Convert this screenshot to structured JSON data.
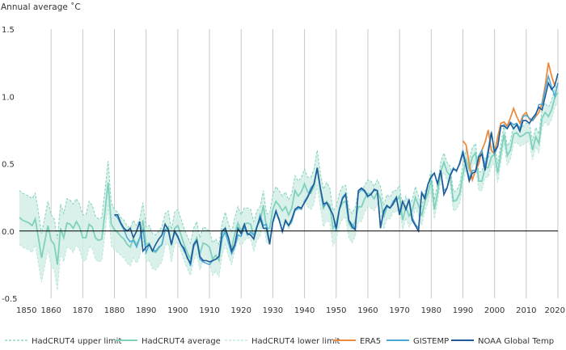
{
  "chart_data": {
    "type": "line",
    "ylabel": "Annual average ˚C",
    "xlim": [
      1850,
      2020
    ],
    "ylim": [
      -0.5,
      1.5
    ],
    "x_ticks": [
      1850,
      1860,
      1870,
      1880,
      1890,
      1900,
      1910,
      1920,
      1930,
      1940,
      1950,
      1960,
      1970,
      1980,
      1990,
      2000,
      2010,
      2020
    ],
    "y_ticks": [
      -0.5,
      0.0,
      0.5,
      1.0,
      1.5
    ],
    "y_tick_labels": [
      "-0.5",
      "0.0",
      "0.5",
      "1.0",
      "1.5"
    ],
    "grid": "vertical",
    "legend_position": "bottom",
    "colors": {
      "hadcrut_band": "#d4efe7",
      "hadcrut_limits": "#7fd1bd",
      "hadcrut_average": "#7fd1bd",
      "era5": "#ec8a3f",
      "gistemp": "#49a8d4",
      "noaa": "#1f5a96",
      "grid": "#c8c8c8",
      "zero_line": "#000000"
    },
    "legend": [
      {
        "key": "upper",
        "label": "HadCRUT4 upper limit",
        "style": "dashed",
        "color": "#7fd1bd"
      },
      {
        "key": "average",
        "label": "HadCRUT4 average",
        "style": "solid",
        "color": "#7fd1bd"
      },
      {
        "key": "lower",
        "label": "HadCRUT4 lower limit",
        "style": "dashed",
        "color": "#b8e5d9"
      },
      {
        "key": "era5",
        "label": "ERA5",
        "style": "solid",
        "color": "#ec8a3f"
      },
      {
        "key": "gistemp",
        "label": "GISTEMP",
        "style": "solid",
        "color": "#49a8d4"
      },
      {
        "key": "noaa",
        "label": "NOAA Global Temp",
        "style": "solid",
        "color": "#1f5a96"
      }
    ],
    "hadcrut": {
      "start_year": 1850,
      "average": [
        0.1,
        0.08,
        0.07,
        0.06,
        0.04,
        0.09,
        -0.05,
        -0.2,
        -0.08,
        0.04,
        -0.07,
        -0.1,
        -0.25,
        0.02,
        -0.05,
        0.06,
        0.05,
        0.02,
        0.07,
        0.03,
        -0.05,
        -0.05,
        0.05,
        0.03,
        -0.05,
        -0.07,
        -0.06,
        0.14,
        0.36,
        0.05,
        0.01,
        -0.01,
        -0.04,
        -0.06,
        -0.1,
        -0.12,
        -0.06,
        -0.1,
        -0.05,
        0.08,
        -0.1,
        -0.09,
        -0.15,
        -0.16,
        -0.13,
        -0.1,
        0.01,
        0.03,
        -0.11,
        0.02,
        0.04,
        -0.03,
        -0.1,
        -0.16,
        -0.21,
        -0.1,
        -0.05,
        -0.17,
        -0.09,
        -0.1,
        -0.12,
        -0.21,
        -0.18,
        -0.22,
        -0.06,
        0.02,
        -0.07,
        -0.13,
        -0.02,
        0.06,
        0.0,
        0.05,
        0.06,
        0.05,
        -0.04,
        0.04,
        0.07,
        0.19,
        0.02,
        0.02,
        0.16,
        0.22,
        0.19,
        0.15,
        0.18,
        0.12,
        0.17,
        0.3,
        0.26,
        0.29,
        0.35,
        0.29,
        0.28,
        0.33,
        0.47,
        0.3,
        0.17,
        0.22,
        0.19,
        0.02,
        0.06,
        0.16,
        0.21,
        0.22,
        0.06,
        0.02,
        0.07,
        0.18,
        0.18,
        0.24,
        0.28,
        0.27,
        0.24,
        0.29,
        0.24,
        0.1,
        0.18,
        0.17,
        0.22,
        0.22,
        0.26,
        0.08,
        0.18,
        0.11,
        0.15,
        0.25,
        0.19,
        0.11,
        0.22,
        0.28,
        0.38,
        0.16,
        0.28,
        0.44,
        0.51,
        0.44,
        0.41,
        0.22,
        0.23,
        0.28,
        0.42,
        0.53,
        0.46,
        0.55,
        0.58,
        0.37,
        0.37,
        0.47,
        0.47,
        0.55,
        0.57,
        0.43,
        0.58,
        0.72,
        0.56,
        0.6,
        0.72,
        0.73,
        0.7,
        0.71,
        0.73,
        0.73,
        0.6,
        0.7,
        0.65,
        0.84,
        0.88,
        0.85,
        0.9,
        0.99,
        1.03
      ],
      "upper": [
        0.3,
        0.28,
        0.27,
        0.26,
        0.24,
        0.28,
        0.14,
        -0.02,
        0.1,
        0.22,
        0.12,
        0.09,
        -0.06,
        0.2,
        0.13,
        0.24,
        0.23,
        0.2,
        0.24,
        0.2,
        0.12,
        0.12,
        0.22,
        0.19,
        0.11,
        0.09,
        0.1,
        0.3,
        0.52,
        0.21,
        0.16,
        0.14,
        0.1,
        0.08,
        0.04,
        0.02,
        0.08,
        0.04,
        0.09,
        0.21,
        0.03,
        0.04,
        -0.02,
        -0.03,
        0.0,
        0.03,
        0.13,
        0.15,
        0.01,
        0.14,
        0.16,
        0.09,
        0.02,
        -0.04,
        -0.09,
        0.02,
        0.07,
        -0.05,
        0.03,
        0.02,
        0.0,
        -0.09,
        -0.06,
        -0.1,
        0.06,
        0.14,
        0.05,
        -0.01,
        0.1,
        0.18,
        0.12,
        0.17,
        0.17,
        0.16,
        0.07,
        0.15,
        0.18,
        0.3,
        0.13,
        0.13,
        0.27,
        0.33,
        0.3,
        0.26,
        0.29,
        0.23,
        0.28,
        0.41,
        0.37,
        0.4,
        0.46,
        0.4,
        0.4,
        0.46,
        0.6,
        0.43,
        0.31,
        0.36,
        0.32,
        0.15,
        0.18,
        0.28,
        0.33,
        0.34,
        0.17,
        0.13,
        0.18,
        0.29,
        0.29,
        0.34,
        0.38,
        0.37,
        0.33,
        0.38,
        0.33,
        0.19,
        0.27,
        0.25,
        0.3,
        0.3,
        0.34,
        0.16,
        0.26,
        0.19,
        0.23,
        0.33,
        0.26,
        0.18,
        0.29,
        0.35,
        0.45,
        0.23,
        0.35,
        0.51,
        0.58,
        0.51,
        0.48,
        0.29,
        0.3,
        0.35,
        0.49,
        0.6,
        0.53,
        0.62,
        0.65,
        0.44,
        0.44,
        0.54,
        0.54,
        0.62,
        0.64,
        0.5,
        0.65,
        0.79,
        0.63,
        0.67,
        0.79,
        0.8,
        0.77,
        0.78,
        0.8,
        0.8,
        0.67,
        0.77,
        0.72,
        0.91,
        0.95,
        0.92,
        0.97,
        1.06,
        1.1
      ],
      "lower": [
        -0.1,
        -0.12,
        -0.13,
        -0.14,
        -0.16,
        -0.1,
        -0.24,
        -0.38,
        -0.26,
        -0.14,
        -0.26,
        -0.29,
        -0.44,
        -0.16,
        -0.23,
        -0.12,
        -0.13,
        -0.16,
        -0.1,
        -0.14,
        -0.22,
        -0.22,
        -0.12,
        -0.13,
        -0.21,
        -0.23,
        -0.22,
        -0.02,
        0.2,
        -0.11,
        -0.14,
        -0.16,
        -0.18,
        -0.2,
        -0.24,
        -0.26,
        -0.2,
        -0.24,
        -0.19,
        -0.05,
        -0.23,
        -0.22,
        -0.28,
        -0.29,
        -0.26,
        -0.23,
        -0.11,
        -0.09,
        -0.23,
        -0.1,
        -0.08,
        -0.15,
        -0.22,
        -0.28,
        -0.33,
        -0.22,
        -0.17,
        -0.29,
        -0.21,
        -0.22,
        -0.24,
        -0.33,
        -0.3,
        -0.34,
        -0.18,
        -0.1,
        -0.19,
        -0.25,
        -0.14,
        -0.06,
        -0.12,
        -0.07,
        -0.05,
        -0.06,
        -0.15,
        -0.07,
        -0.04,
        0.08,
        -0.09,
        -0.09,
        0.05,
        0.11,
        0.08,
        0.04,
        0.07,
        0.01,
        0.06,
        0.19,
        0.15,
        0.18,
        0.24,
        0.18,
        0.16,
        0.2,
        0.34,
        0.17,
        0.03,
        0.08,
        0.06,
        -0.11,
        -0.06,
        0.04,
        0.09,
        0.1,
        -0.05,
        -0.09,
        -0.04,
        0.07,
        0.07,
        0.14,
        0.18,
        0.17,
        0.15,
        0.2,
        0.15,
        0.01,
        0.09,
        0.09,
        0.14,
        0.14,
        0.18,
        0.0,
        0.1,
        0.03,
        0.07,
        0.17,
        0.12,
        0.04,
        0.15,
        0.21,
        0.31,
        0.09,
        0.21,
        0.37,
        0.44,
        0.37,
        0.34,
        0.15,
        0.16,
        0.21,
        0.35,
        0.46,
        0.39,
        0.48,
        0.51,
        0.3,
        0.3,
        0.4,
        0.4,
        0.48,
        0.5,
        0.36,
        0.51,
        0.65,
        0.49,
        0.53,
        0.65,
        0.66,
        0.63,
        0.64,
        0.66,
        0.66,
        0.53,
        0.63,
        0.58,
        0.77,
        0.81,
        0.78,
        0.83,
        0.92,
        0.96
      ]
    },
    "noaa": {
      "start_year": 1880,
      "values": [
        0.12,
        0.12,
        0.06,
        0.02,
        0.0,
        0.02,
        -0.05,
        0.0,
        0.07,
        -0.15,
        -0.12,
        -0.1,
        -0.15,
        -0.1,
        -0.06,
        -0.03,
        0.05,
        0.01,
        -0.1,
        0.0,
        -0.04,
        -0.1,
        -0.13,
        -0.2,
        -0.24,
        -0.1,
        -0.07,
        -0.19,
        -0.22,
        -0.22,
        -0.23,
        -0.22,
        -0.21,
        -0.19,
        0.0,
        0.02,
        -0.05,
        -0.15,
        -0.1,
        0.02,
        -0.02,
        0.05,
        -0.02,
        -0.03,
        -0.06,
        0.03,
        0.1,
        0.02,
        0.02,
        -0.1,
        0.07,
        0.15,
        0.08,
        0.0,
        0.08,
        0.04,
        0.09,
        0.16,
        0.18,
        0.17,
        0.21,
        0.25,
        0.3,
        0.35,
        0.47,
        0.32,
        0.2,
        0.21,
        0.17,
        0.12,
        0.02,
        0.16,
        0.24,
        0.27,
        0.08,
        0.03,
        0.01,
        0.3,
        0.32,
        0.3,
        0.26,
        0.27,
        0.31,
        0.3,
        0.02,
        0.15,
        0.19,
        0.17,
        0.2,
        0.25,
        0.12,
        0.22,
        0.16,
        0.23,
        0.08,
        0.04,
        0.0,
        0.28,
        0.24,
        0.35,
        0.4,
        0.43,
        0.35,
        0.45,
        0.27,
        0.32,
        0.41,
        0.46,
        0.45,
        0.5,
        0.58,
        0.48,
        0.37,
        0.43,
        0.44,
        0.55,
        0.57,
        0.45,
        0.58,
        0.73,
        0.59,
        0.63,
        0.78,
        0.78,
        0.76,
        0.8,
        0.76,
        0.79,
        0.74,
        0.82,
        0.82,
        0.8,
        0.84,
        0.87,
        0.92,
        0.9,
        1.0,
        1.1,
        1.05,
        1.08,
        1.17
      ]
    },
    "gistemp": {
      "start_year": 1880,
      "values": [
        0.12,
        0.1,
        0.05,
        0.01,
        -0.05,
        -0.08,
        -0.07,
        -0.12,
        -0.05,
        0.01,
        -0.16,
        -0.1,
        -0.14,
        -0.15,
        -0.12,
        -0.1,
        0.01,
        0.0,
        -0.1,
        -0.01,
        -0.05,
        -0.1,
        -0.15,
        -0.19,
        -0.26,
        -0.12,
        -0.07,
        -0.21,
        -0.23,
        -0.24,
        -0.25,
        -0.22,
        -0.21,
        -0.19,
        -0.05,
        -0.01,
        -0.09,
        -0.17,
        -0.12,
        -0.03,
        -0.04,
        0.03,
        -0.03,
        -0.01,
        -0.03,
        0.03,
        0.12,
        0.04,
        0.05,
        -0.09,
        0.06,
        0.14,
        0.09,
        -0.01,
        0.07,
        0.04,
        0.07,
        0.15,
        0.17,
        0.16,
        0.22,
        0.26,
        0.32,
        0.35,
        0.46,
        0.32,
        0.18,
        0.21,
        0.16,
        0.12,
        0.0,
        0.16,
        0.25,
        0.28,
        0.08,
        0.05,
        0.02,
        0.28,
        0.31,
        0.29,
        0.25,
        0.28,
        0.3,
        0.3,
        0.04,
        0.13,
        0.18,
        0.17,
        0.22,
        0.25,
        0.14,
        0.22,
        0.16,
        0.24,
        0.1,
        0.05,
        0.02,
        0.29,
        0.25,
        0.35,
        0.41,
        0.43,
        0.35,
        0.45,
        0.3,
        0.32,
        0.42,
        0.47,
        0.44,
        0.51,
        0.6,
        0.49,
        0.39,
        0.45,
        0.45,
        0.56,
        0.6,
        0.48,
        0.61,
        0.74,
        0.57,
        0.63,
        0.78,
        0.79,
        0.76,
        0.81,
        0.79,
        0.8,
        0.76,
        0.85,
        0.86,
        0.84,
        0.82,
        0.86,
        0.94,
        0.94,
        1.05,
        1.15,
        1.07,
        1.0,
        1.1
      ]
    },
    "era5": {
      "start_year": 1990,
      "values": [
        0.67,
        0.64,
        0.5,
        0.38,
        0.45,
        0.5,
        0.6,
        0.66,
        0.75,
        0.6,
        0.57,
        0.7,
        0.8,
        0.81,
        0.78,
        0.84,
        0.91,
        0.85,
        0.8,
        0.86,
        0.88,
        0.83,
        0.82,
        0.85,
        0.88,
        0.95,
        1.08,
        1.25,
        1.15,
        1.08
      ]
    }
  }
}
